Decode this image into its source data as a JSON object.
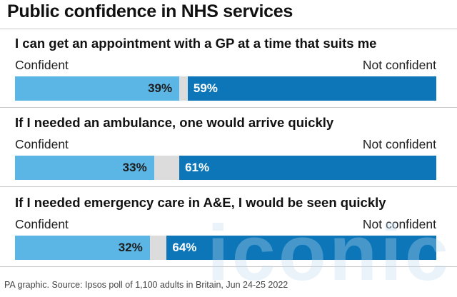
{
  "title": "Public confidence in NHS services",
  "left_label": "Confident",
  "right_label": "Not confident",
  "source": "PA graphic. Source: Ipsos poll of 1,100 adults in Britain, Jun 24-25 2022",
  "watermark": "iconic",
  "colors": {
    "confident": "#5bb6e6",
    "neutral": "#dcdcdc",
    "not_confident": "#0c76b9"
  },
  "chart_data": {
    "type": "bar",
    "stacked": true,
    "orientation": "horizontal",
    "title": "Public confidence in NHS services",
    "categories": [
      "I can get an appointment with a GP at a time that suits me",
      "If I needed an ambulance, one would arrive quickly",
      "If I needed emergency care in A&E, I would be seen quickly"
    ],
    "series": [
      {
        "name": "Confident",
        "values": [
          39,
          33,
          32
        ]
      },
      {
        "name": "Not confident",
        "values": [
          59,
          61,
          64
        ]
      }
    ],
    "value_labels": [
      {
        "left": "39%",
        "right": "59%"
      },
      {
        "left": "33%",
        "right": "61%"
      },
      {
        "left": "32%",
        "right": "64%"
      }
    ],
    "xlim": [
      0,
      100
    ],
    "legend": "none",
    "grid": false
  }
}
